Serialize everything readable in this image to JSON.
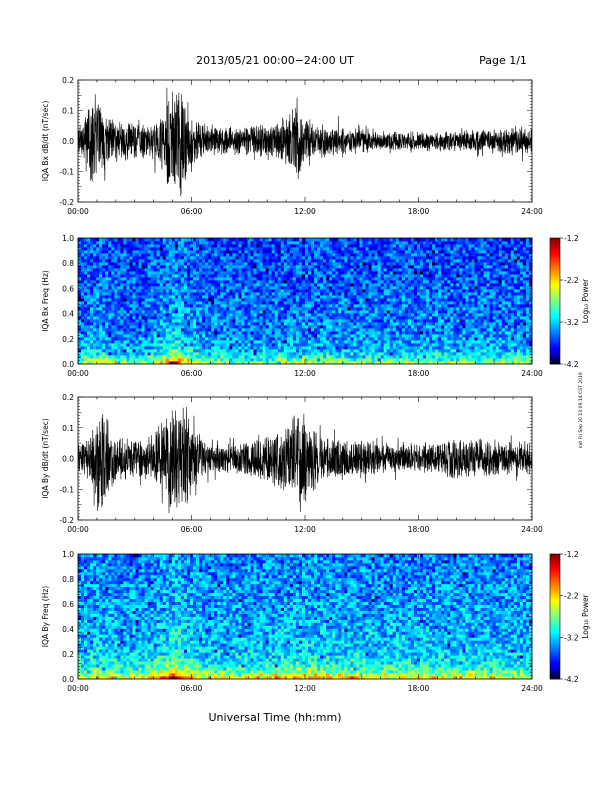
{
  "header": {
    "title": "2013/05/21  00:00−24:00 UT",
    "page_label": "Page 1/1"
  },
  "footer": {
    "xlabel": "Universal Time (hh:mm)"
  },
  "side_note": "init Fri Sep 20 13:09:14 CST 2019",
  "chart_data": [
    {
      "type": "line",
      "name": "bx-waveform",
      "ylabel": "IQA Bx dB/dt (nT/sec)",
      "xlim": [
        0,
        24
      ],
      "ylim": [
        -0.2,
        0.2
      ],
      "x_ticks": [
        "00:00",
        "06:00",
        "12:00",
        "18:00",
        "24:00"
      ],
      "y_ticks": [
        "-0.2",
        "-0.1",
        "0.0",
        "0.1",
        "0.2"
      ],
      "y_tick_values": [
        -0.2,
        -0.1,
        0.0,
        0.1,
        0.2
      ],
      "envelope": [
        {
          "t": 0.0,
          "amp": 0.06
        },
        {
          "t": 0.3,
          "amp": 0.07
        },
        {
          "t": 0.5,
          "amp": 0.12
        },
        {
          "t": 0.8,
          "amp": 0.2
        },
        {
          "t": 1.0,
          "amp": 0.2
        },
        {
          "t": 1.3,
          "amp": 0.12
        },
        {
          "t": 1.7,
          "amp": 0.08
        },
        {
          "t": 2.5,
          "amp": 0.07
        },
        {
          "t": 3.5,
          "amp": 0.06
        },
        {
          "t": 4.2,
          "amp": 0.07
        },
        {
          "t": 4.7,
          "amp": 0.14
        },
        {
          "t": 4.9,
          "amp": 0.2
        },
        {
          "t": 5.5,
          "amp": 0.2
        },
        {
          "t": 5.8,
          "amp": 0.14
        },
        {
          "t": 6.2,
          "amp": 0.08
        },
        {
          "t": 7.0,
          "amp": 0.05
        },
        {
          "t": 8.5,
          "amp": 0.05
        },
        {
          "t": 9.5,
          "amp": 0.06
        },
        {
          "t": 10.5,
          "amp": 0.07
        },
        {
          "t": 11.2,
          "amp": 0.1
        },
        {
          "t": 11.6,
          "amp": 0.17
        },
        {
          "t": 11.9,
          "amp": 0.1
        },
        {
          "t": 12.3,
          "amp": 0.07
        },
        {
          "t": 13.5,
          "amp": 0.05
        },
        {
          "t": 15.0,
          "amp": 0.04
        },
        {
          "t": 17.0,
          "amp": 0.035
        },
        {
          "t": 19.0,
          "amp": 0.035
        },
        {
          "t": 21.0,
          "amp": 0.04
        },
        {
          "t": 22.5,
          "amp": 0.05
        },
        {
          "t": 24.0,
          "amp": 0.05
        }
      ]
    },
    {
      "type": "heatmap",
      "name": "bx-spectrogram",
      "ylabel": "IQA Bx Freq (Hz)",
      "colorbar_label": "Log₁₀ Power",
      "xlim": [
        0,
        24
      ],
      "ylim": [
        0.0,
        1.0
      ],
      "x_ticks": [
        "00:00",
        "06:00",
        "12:00",
        "18:00",
        "24:00"
      ],
      "y_ticks": [
        "0.0",
        "0.2",
        "0.4",
        "0.6",
        "0.8",
        "1.0"
      ],
      "y_tick_values": [
        0.0,
        0.2,
        0.4,
        0.6,
        0.8,
        1.0
      ],
      "color_range": [
        -4.2,
        -1.2
      ],
      "colorbar_ticks": [
        "-1.2",
        "-2.2",
        "-3.2",
        "-4.2"
      ],
      "colorbar_tick_values": [
        -1.2,
        -2.2,
        -3.2,
        -4.2
      ],
      "background_power": -3.45,
      "low_freq_power": -2.8,
      "activity": [
        {
          "t": 0.0,
          "boost": 0.1
        },
        {
          "t": 0.8,
          "boost": 0.35
        },
        {
          "t": 1.2,
          "boost": 0.3
        },
        {
          "t": 2.0,
          "boost": 0.15
        },
        {
          "t": 3.5,
          "boost": 0.1
        },
        {
          "t": 4.7,
          "boost": 0.55
        },
        {
          "t": 5.0,
          "boost": 0.9
        },
        {
          "t": 5.6,
          "boost": 0.6
        },
        {
          "t": 6.5,
          "boost": 0.2
        },
        {
          "t": 9.0,
          "boost": 0.1
        },
        {
          "t": 11.7,
          "boost": 0.2
        },
        {
          "t": 14.0,
          "boost": 0.15
        },
        {
          "t": 18.0,
          "boost": 0.2
        },
        {
          "t": 21.0,
          "boost": 0.15
        },
        {
          "t": 24.0,
          "boost": 0.2
        }
      ]
    },
    {
      "type": "line",
      "name": "by-waveform",
      "ylabel": "IQA By dB/dt (nT/sec)",
      "xlim": [
        0,
        24
      ],
      "ylim": [
        -0.2,
        0.2
      ],
      "x_ticks": [
        "00:00",
        "06:00",
        "12:00",
        "18:00",
        "24:00"
      ],
      "y_ticks": [
        "-0.2",
        "-0.1",
        "0.0",
        "0.1",
        "0.2"
      ],
      "y_tick_values": [
        -0.2,
        -0.1,
        0.0,
        0.1,
        0.2
      ],
      "envelope": [
        {
          "t": 0.0,
          "amp": 0.05
        },
        {
          "t": 0.5,
          "amp": 0.07
        },
        {
          "t": 0.9,
          "amp": 0.12
        },
        {
          "t": 1.2,
          "amp": 0.2
        },
        {
          "t": 1.5,
          "amp": 0.14
        },
        {
          "t": 2.0,
          "amp": 0.08
        },
        {
          "t": 3.0,
          "amp": 0.07
        },
        {
          "t": 4.0,
          "amp": 0.08
        },
        {
          "t": 4.6,
          "amp": 0.15
        },
        {
          "t": 4.9,
          "amp": 0.2
        },
        {
          "t": 5.6,
          "amp": 0.2
        },
        {
          "t": 6.0,
          "amp": 0.12
        },
        {
          "t": 6.8,
          "amp": 0.06
        },
        {
          "t": 8.0,
          "amp": 0.05
        },
        {
          "t": 9.0,
          "amp": 0.07
        },
        {
          "t": 10.0,
          "amp": 0.09
        },
        {
          "t": 11.0,
          "amp": 0.12
        },
        {
          "t": 11.7,
          "amp": 0.2
        },
        {
          "t": 12.2,
          "amp": 0.12
        },
        {
          "t": 13.0,
          "amp": 0.08
        },
        {
          "t": 14.5,
          "amp": 0.07
        },
        {
          "t": 16.0,
          "amp": 0.06
        },
        {
          "t": 17.5,
          "amp": 0.05
        },
        {
          "t": 19.0,
          "amp": 0.06
        },
        {
          "t": 20.0,
          "amp": 0.08
        },
        {
          "t": 21.0,
          "amp": 0.07
        },
        {
          "t": 22.5,
          "amp": 0.06
        },
        {
          "t": 24.0,
          "amp": 0.06
        }
      ]
    },
    {
      "type": "heatmap",
      "name": "by-spectrogram",
      "ylabel": "IQA By Freq (Hz)",
      "colorbar_label": "Log₁₀ Power",
      "xlim": [
        0,
        24
      ],
      "ylim": [
        0.0,
        1.0
      ],
      "x_ticks": [
        "00:00",
        "06:00",
        "12:00",
        "18:00",
        "24:00"
      ],
      "y_ticks": [
        "0.0",
        "0.2",
        "0.4",
        "0.6",
        "0.8",
        "1.0"
      ],
      "y_tick_values": [
        0.0,
        0.2,
        0.4,
        0.6,
        0.8,
        1.0
      ],
      "color_range": [
        -4.2,
        -1.2
      ],
      "colorbar_ticks": [
        "-1.2",
        "-2.2",
        "-3.2",
        "-4.2"
      ],
      "colorbar_tick_values": [
        -1.2,
        -2.2,
        -3.2,
        -4.2
      ],
      "background_power": -3.3,
      "low_freq_power": -2.6,
      "activity": [
        {
          "t": 0.0,
          "boost": 0.1
        },
        {
          "t": 1.2,
          "boost": 0.35
        },
        {
          "t": 2.5,
          "boost": 0.15
        },
        {
          "t": 4.7,
          "boost": 0.6
        },
        {
          "t": 5.0,
          "boost": 1.0
        },
        {
          "t": 5.7,
          "boost": 0.6
        },
        {
          "t": 6.5,
          "boost": 0.25
        },
        {
          "t": 8.0,
          "boost": 0.2
        },
        {
          "t": 10.0,
          "boost": 0.3
        },
        {
          "t": 11.7,
          "boost": 0.45
        },
        {
          "t": 13.5,
          "boost": 0.35
        },
        {
          "t": 16.0,
          "boost": 0.3
        },
        {
          "t": 18.5,
          "boost": 0.25
        },
        {
          "t": 21.0,
          "boost": 0.25
        },
        {
          "t": 24.0,
          "boost": 0.2
        }
      ]
    }
  ]
}
